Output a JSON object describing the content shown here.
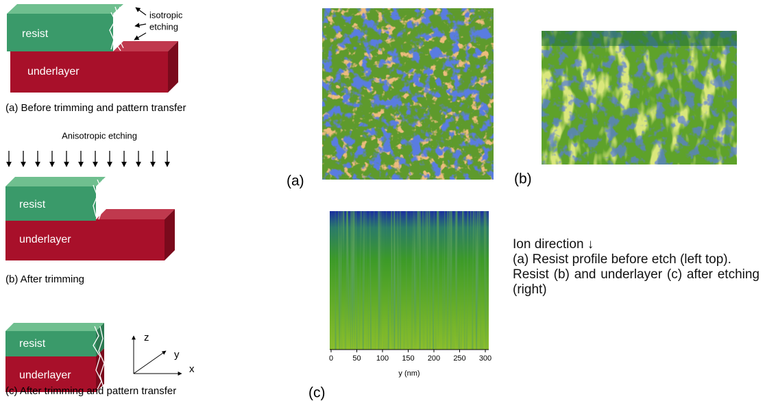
{
  "panel_a": {
    "note": [
      "isotropic",
      "etching"
    ],
    "resist": "resist",
    "underlayer": "underlayer",
    "caption": "(a) Before trimming and pattern transfer"
  },
  "panel_b": {
    "arrow_label": "Anisotropic etching",
    "resist": "resist",
    "underlayer": "underlayer",
    "caption": "(b) After trimming"
  },
  "panel_c": {
    "resist": "resist",
    "underlayer": "underlayer",
    "axes": {
      "z": "z",
      "y": "y",
      "x": "x"
    },
    "caption": "(c) After trimming and pattern transfer"
  },
  "simulations": {
    "a_label": "(a)",
    "b_label": "(b)",
    "c_label": "(c)",
    "c_xticks": [
      "0",
      "50",
      "100",
      "150",
      "200",
      "250",
      "300"
    ],
    "c_xlabel": "y (nm)"
  },
  "legend_text": [
    "Ion direction ↓",
    "(a) Resist profile before etch (left top).",
    "Resist (b) and underlayer (c) after etching (right)"
  ]
}
